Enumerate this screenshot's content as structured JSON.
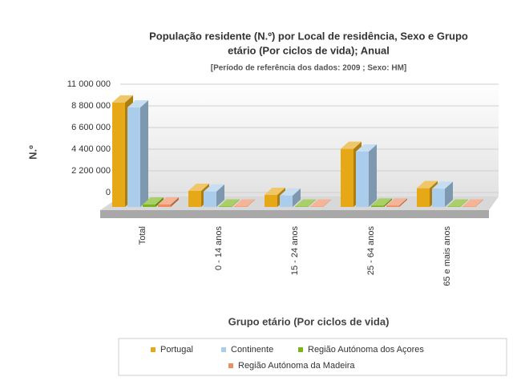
{
  "chart_data": {
    "type": "bar3d",
    "title": [
      "População residente (N.º) por Local de residência, Sexo e Grupo",
      "etário (Por ciclos de vida); Anual"
    ],
    "subtitle": "[Período de referência dos dados: 2009 ; Sexo: HM]",
    "y_label": "N.º",
    "x_label": "Grupo etário (Por ciclos de vida)",
    "categories": [
      "Total",
      "0 - 14 anos",
      "15 - 24 anos",
      "25 - 64 anos",
      "65 e mais anos"
    ],
    "series": [
      {
        "name": "Portugal",
        "color": "#e6a817",
        "values": [
          10600000,
          1630000,
          1220000,
          5900000,
          1900000
        ]
      },
      {
        "name": "Continente",
        "color": "#a9cdea",
        "values": [
          10100000,
          1560000,
          1150000,
          5620000,
          1840000
        ]
      },
      {
        "name": "Região Autónoma dos Açores",
        "color": "#7cb518",
        "values": [
          245000,
          45000,
          35000,
          130000,
          32000
        ]
      },
      {
        "name": "Região Autónoma da Madeira",
        "color": "#f28c5e",
        "values": [
          247000,
          40000,
          33000,
          135000,
          38000
        ]
      }
    ],
    "ylim": [
      0,
      11000000
    ],
    "yticks": [
      0,
      {
        "value": 2200000,
        "label": "2 200 000"
      },
      {
        "value": 4400000,
        "label": "4 400 000"
      },
      {
        "value": 6600000,
        "label": "6 600 000"
      },
      {
        "value": 8800000,
        "label": "8 800 000"
      },
      {
        "value": 11000000,
        "label": "11 000 000"
      }
    ],
    "grid": true
  }
}
